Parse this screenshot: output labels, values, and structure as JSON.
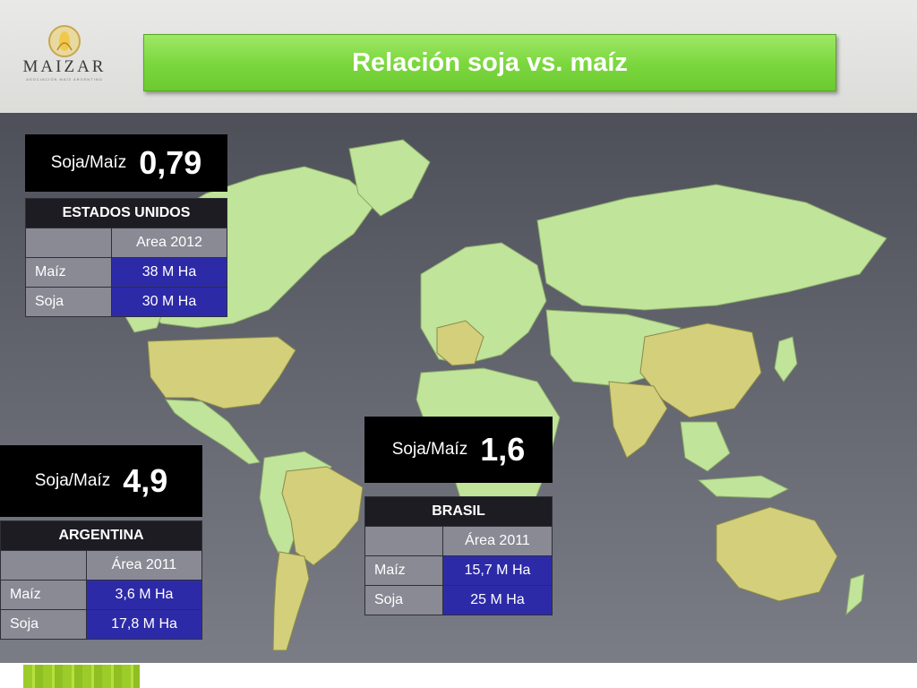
{
  "header": {
    "logo_name": "MAIZAR",
    "logo_subtitle": "ASOCIACIÓN MAÍZ ARGENTINO",
    "title": "Relación soja vs. maíz"
  },
  "colors": {
    "title_green": "#7dd83f",
    "highlight_country": "#d3cf7a",
    "other_country": "#bfe49a",
    "value_cell": "#2d2aa8"
  },
  "usa": {
    "ratio_label": "Soja/Maíz",
    "ratio_value": "0,79",
    "country": "ESTADOS UNIDOS",
    "col_header": "Area 2012",
    "rows": [
      {
        "label": "Maíz",
        "value": "38 M Ha"
      },
      {
        "label": "Soja",
        "value": "30 M Ha"
      }
    ]
  },
  "argentina": {
    "ratio_label": "Soja/Maíz",
    "ratio_value": "4,9",
    "country": "ARGENTINA",
    "col_header": "Área 2011",
    "rows": [
      {
        "label": "Maíz",
        "value": "3,6 M Ha"
      },
      {
        "label": "Soja",
        "value": "17,8 M Ha"
      }
    ]
  },
  "brasil": {
    "ratio_label": "Soja/Maíz",
    "ratio_value": "1,6",
    "country": "BRASIL",
    "col_header": "Área 2011",
    "rows": [
      {
        "label": "Maíz",
        "value": "15,7 M Ha"
      },
      {
        "label": "Soja",
        "value": "25 M Ha"
      }
    ]
  }
}
